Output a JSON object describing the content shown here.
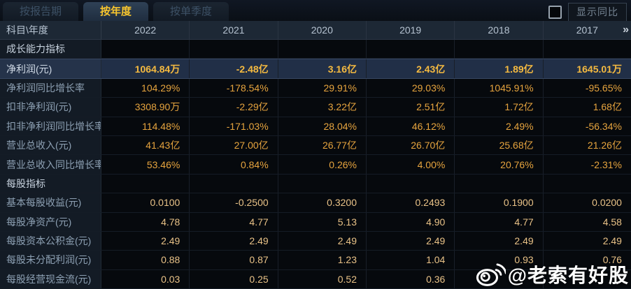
{
  "tabs": [
    {
      "label": "按报告期",
      "active": false
    },
    {
      "label": "按年度",
      "active": true
    },
    {
      "label": "按单季度",
      "active": false
    }
  ],
  "controls": {
    "yoy_checkbox_checked": false,
    "yoy_label": "显示同比"
  },
  "table": {
    "corner_header": "科目\\年度",
    "years": [
      "2022",
      "2021",
      "2020",
      "2019",
      "2018",
      "2017"
    ],
    "more_years_icon": "»",
    "rows": [
      {
        "label": "成长能力指标",
        "type": "section",
        "values": [
          "",
          "",
          "",
          "",
          "",
          ""
        ]
      },
      {
        "label": "净利润(元)",
        "type": "highlight",
        "values": [
          "1064.84万",
          "-2.48亿",
          "3.16亿",
          "2.43亿",
          "1.89亿",
          "1645.01万"
        ]
      },
      {
        "label": "净利润同比增长率",
        "type": "normal",
        "values": [
          "104.29%",
          "-178.54%",
          "29.91%",
          "29.03%",
          "1045.91%",
          "-95.65%"
        ]
      },
      {
        "label": "扣非净利润(元)",
        "type": "normal",
        "values": [
          "3308.90万",
          "-2.29亿",
          "3.22亿",
          "2.51亿",
          "1.72亿",
          "1.68亿"
        ]
      },
      {
        "label": "扣非净利润同比增长率",
        "type": "normal",
        "values": [
          "114.48%",
          "-171.03%",
          "28.04%",
          "46.12%",
          "2.49%",
          "-56.34%"
        ]
      },
      {
        "label": "营业总收入(元)",
        "type": "normal",
        "values": [
          "41.43亿",
          "27.00亿",
          "26.77亿",
          "26.70亿",
          "25.68亿",
          "21.26亿"
        ]
      },
      {
        "label": "营业总收入同比增长率",
        "type": "normal",
        "values": [
          "53.46%",
          "0.84%",
          "0.26%",
          "4.00%",
          "20.76%",
          "-2.31%"
        ]
      },
      {
        "label": "每股指标",
        "type": "section",
        "values": [
          "",
          "",
          "",
          "",
          "",
          ""
        ]
      },
      {
        "label": "基本每股收益(元)",
        "type": "pale",
        "values": [
          "0.0100",
          "-0.2500",
          "0.3200",
          "0.2493",
          "0.1900",
          "0.0200"
        ]
      },
      {
        "label": "每股净资产(元)",
        "type": "pale",
        "values": [
          "4.78",
          "4.77",
          "5.13",
          "4.90",
          "4.77",
          "4.58"
        ]
      },
      {
        "label": "每股资本公积金(元)",
        "type": "pale",
        "values": [
          "2.49",
          "2.49",
          "2.49",
          "2.49",
          "2.49",
          "2.49"
        ]
      },
      {
        "label": "每股未分配利润(元)",
        "type": "pale",
        "values": [
          "0.88",
          "0.87",
          "1.23",
          "1.04",
          "0.93",
          "0.76"
        ]
      },
      {
        "label": "每股经营现金流(元)",
        "type": "pale",
        "values": [
          "0.03",
          "0.25",
          "0.52",
          "0.36",
          "",
          ""
        ]
      }
    ]
  },
  "watermark": {
    "text": "@老索有好股",
    "icon": "weibo-logo"
  },
  "colors": {
    "value_gold": "#e6a43e",
    "value_gold_bold": "#f5ba40",
    "value_pale": "#e9c287",
    "active_tab_text": "#f7c52e",
    "highlight_row_bg": "#212f47",
    "header_bg": "#1d2835",
    "label_col_bg": "#131b25"
  }
}
